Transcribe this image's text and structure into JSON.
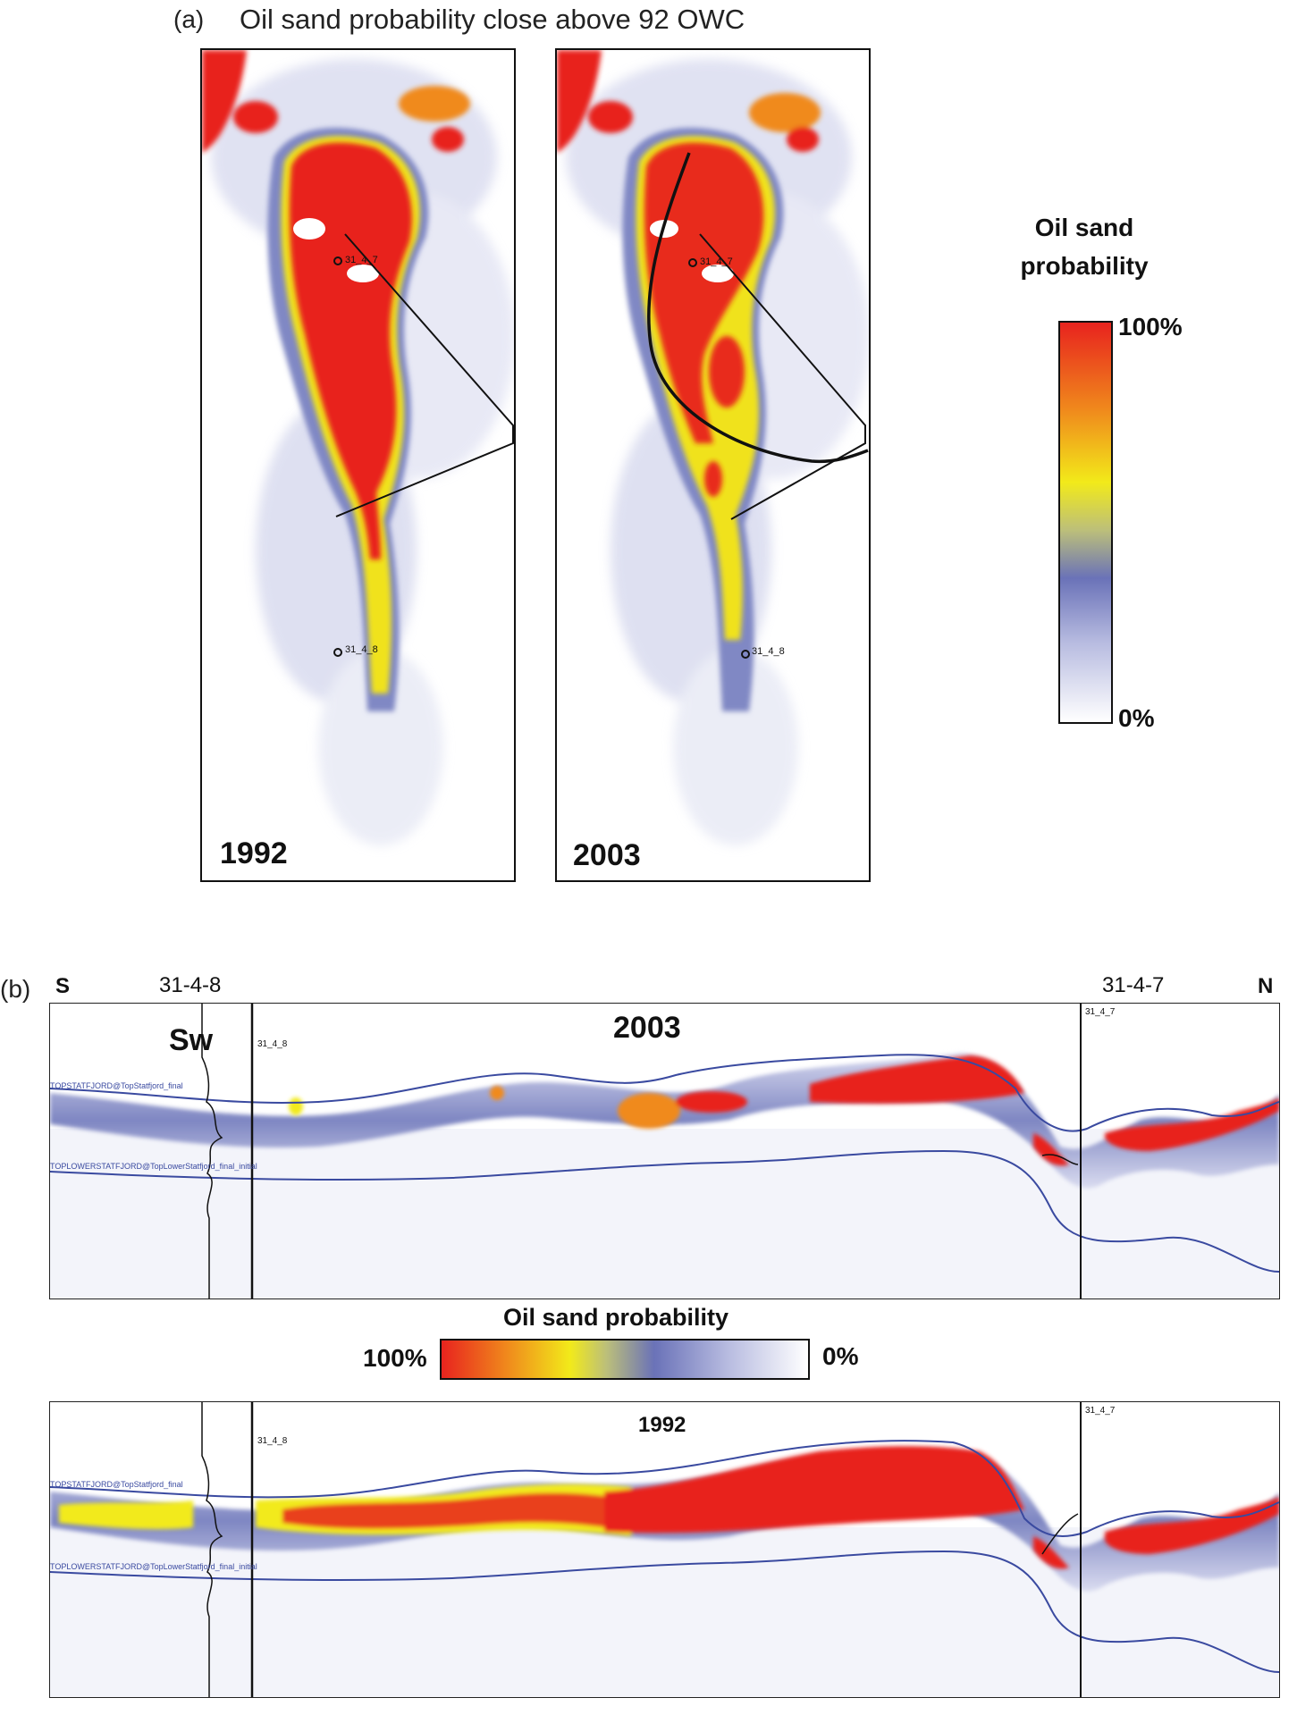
{
  "panel_a": {
    "label": "(a)",
    "title": "Oil sand probability close above 92 OWC",
    "maps": [
      {
        "year": "1992",
        "wells": [
          "31_4_7",
          "31_4_8"
        ]
      },
      {
        "year": "2003",
        "wells": [
          "31_4_7",
          "31_4_8"
        ]
      }
    ],
    "legend": {
      "title_line1": "Oil sand",
      "title_line2": "probability",
      "max": "100%",
      "min": "0%"
    }
  },
  "panel_b": {
    "label": "(b)",
    "south": "S",
    "north": "N",
    "well_left": "31-4-8",
    "well_right": "31-4-7",
    "top_section": {
      "year": "2003",
      "log_label": "Sw",
      "well_tag_left": "31_4_8",
      "well_tag_right": "31_4_7",
      "horizon_top": "TOPSTATFJORD@TopStatfjord_final",
      "horizon_bottom": "TOPLOWERSTATFJORD@TopLowerStatfjord_final_initial"
    },
    "legend": {
      "title": "Oil sand probability",
      "left": "100%",
      "right": "0%"
    },
    "bottom_section": {
      "year": "1992",
      "well_tag_left": "31_4_8",
      "well_tag_right": "31_4_7",
      "horizon_top": "TOPSTATFJORD@TopStatfjord_final",
      "horizon_bottom": "TOPLOWERSTATFJORD@TopLowerStatfjord_final_initial"
    }
  },
  "colors": {
    "high": "#e8231e",
    "orange": "#f08a1c",
    "yellow": "#f2ea1a",
    "mid_blue": "#6a72b8",
    "pale": "#d9dcef",
    "low": "#ffffff",
    "horizon": "#3a4aa0"
  }
}
